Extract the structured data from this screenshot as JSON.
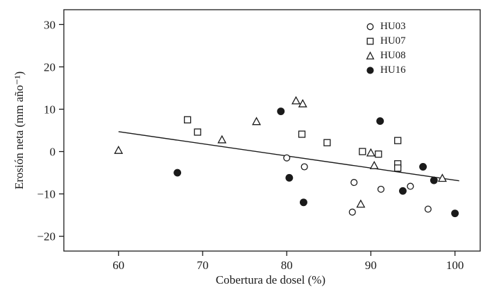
{
  "chart_data": {
    "type": "scatter",
    "title": "",
    "xlabel": "Cobertura de dosel (%)",
    "ylabel": "Erosión neta (mm año⁻¹)",
    "xlim": [
      53.5,
      103
    ],
    "ylim": [
      -23.5,
      33.5
    ],
    "xticks": [
      60,
      70,
      80,
      90,
      100
    ],
    "yticks": [
      -20,
      -10,
      0,
      10,
      20,
      30
    ],
    "grid": false,
    "legend_position": "top-right-inside",
    "marker_color": "#1a1a1a",
    "series": [
      {
        "name": "HU03",
        "marker": "circle-open",
        "points": [
          [
            80,
            -1.5
          ],
          [
            82.1,
            -3.6
          ],
          [
            88,
            -7.3
          ],
          [
            87.8,
            -14.3
          ],
          [
            91.2,
            -8.9
          ],
          [
            94.7,
            -8.2
          ],
          [
            96.8,
            -13.6
          ]
        ]
      },
      {
        "name": "HU07",
        "marker": "square-open",
        "points": [
          [
            68.2,
            7.5
          ],
          [
            69.4,
            4.6
          ],
          [
            81.8,
            4.1
          ],
          [
            84.8,
            2.1
          ],
          [
            89,
            0
          ],
          [
            90.9,
            -0.6
          ],
          [
            93.2,
            2.6
          ],
          [
            93.2,
            -2.9
          ],
          [
            93.2,
            -3.9
          ]
        ]
      },
      {
        "name": "HU08",
        "marker": "triangle-open",
        "points": [
          [
            60,
            0.2
          ],
          [
            72.3,
            2.7
          ],
          [
            76.4,
            7
          ],
          [
            81.1,
            11.9
          ],
          [
            81.9,
            11.2
          ],
          [
            90,
            -0.4
          ],
          [
            90.4,
            -3.4
          ],
          [
            88.8,
            -12.5
          ],
          [
            98.5,
            -6.4
          ]
        ]
      },
      {
        "name": "HU16",
        "marker": "circle-filled",
        "points": [
          [
            67,
            -5
          ],
          [
            79.3,
            9.5
          ],
          [
            80.3,
            -6.2
          ],
          [
            82,
            -12
          ],
          [
            91.1,
            7.2
          ],
          [
            93.8,
            -9.3
          ],
          [
            96.2,
            -3.6
          ],
          [
            97.5,
            -6.8
          ],
          [
            100,
            -14.6
          ]
        ]
      }
    ],
    "trendline": {
      "x1": 60,
      "y1": 4.7,
      "x2": 100.5,
      "y2": -6.9
    }
  }
}
